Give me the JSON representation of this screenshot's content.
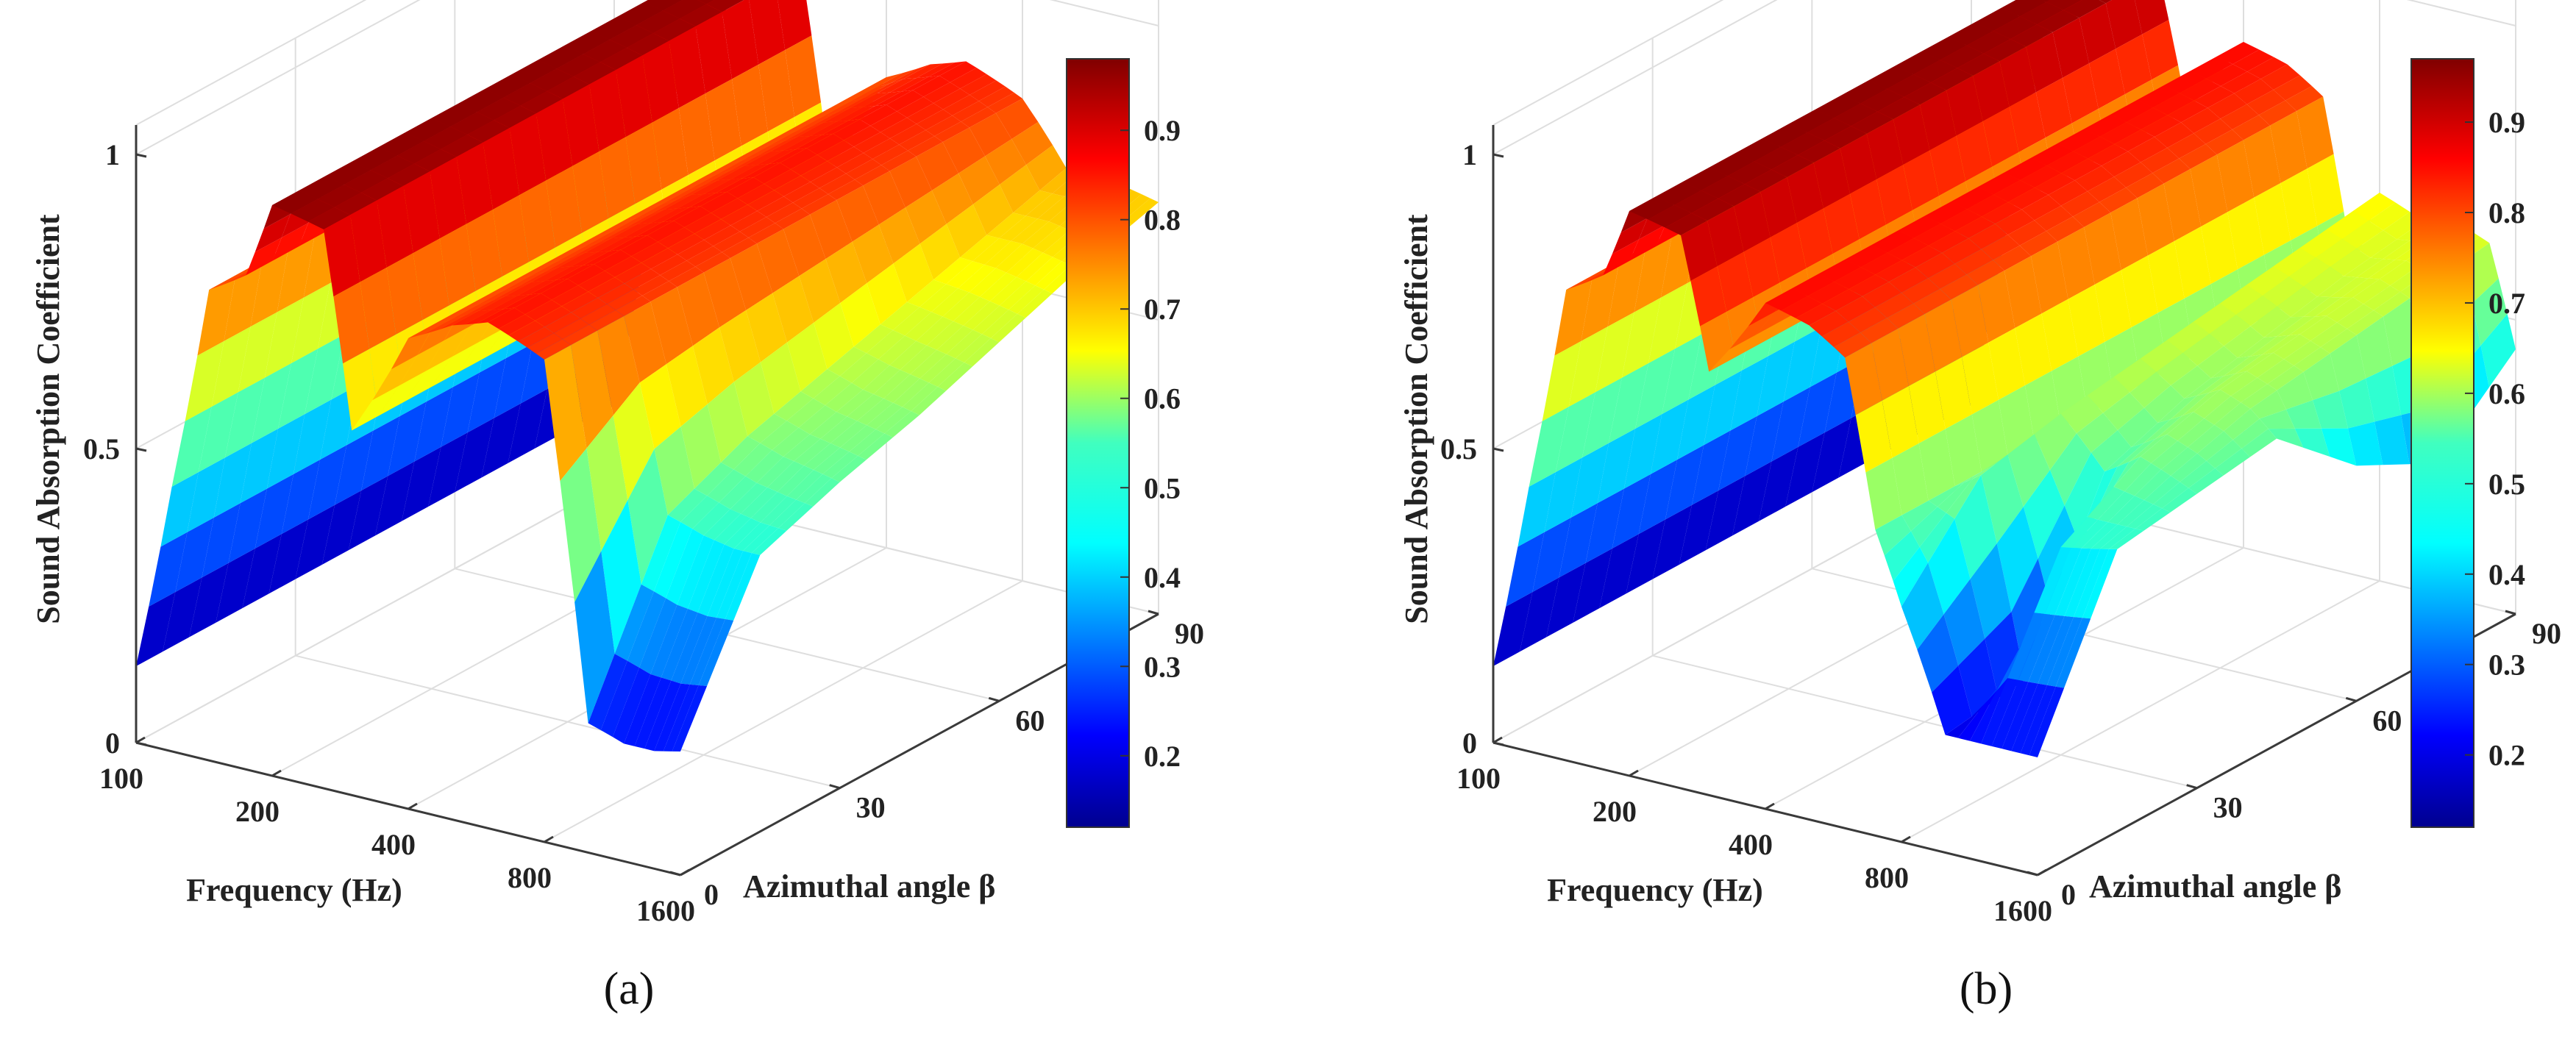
{
  "figure_description_labels": {
    "panel_a_caption": "(a)",
    "panel_b_caption": "(b)"
  },
  "chart_data": [
    {
      "type": "surface",
      "panel": "a",
      "caption": "(a)",
      "zlabel": "Sound Absorption Coefficient",
      "xlabel": "Frequency (Hz)",
      "ylabel": "Azimuthal angle β",
      "x_ticks": [
        "100",
        "200",
        "400",
        "800",
        "1600"
      ],
      "y_ticks": [
        "0",
        "30",
        "60",
        "90"
      ],
      "z_ticks": [
        "0",
        "0.5",
        "1"
      ],
      "zlim": [
        0,
        1
      ],
      "colorbar": {
        "ticks": [
          "0.2",
          "0.3",
          "0.4",
          "0.5",
          "0.6",
          "0.7",
          "0.8",
          "0.9"
        ],
        "range": [
          0.12,
          0.98
        ],
        "colormap": "jet"
      },
      "angle_deg": [
        0,
        15,
        30,
        45,
        60,
        75,
        90
      ],
      "frequency_hz": [
        100,
        120,
        145,
        175,
        200,
        260,
        300,
        400,
        500,
        600,
        700,
        800,
        1000,
        1200,
        1400,
        1600
      ],
      "absorption": [
        [
          0.13,
          0.45,
          0.8,
          0.84,
          0.97,
          0.95,
          0.62,
          0.8,
          0.84,
          0.86,
          0.84,
          0.82,
          0.22,
          0.2,
          0.2,
          0.21
        ],
        [
          0.13,
          0.45,
          0.8,
          0.84,
          0.97,
          0.95,
          0.62,
          0.8,
          0.84,
          0.86,
          0.84,
          0.82,
          0.5,
          0.48,
          0.47,
          0.47
        ],
        [
          0.13,
          0.45,
          0.8,
          0.84,
          0.97,
          0.95,
          0.62,
          0.8,
          0.84,
          0.86,
          0.84,
          0.82,
          0.56,
          0.54,
          0.53,
          0.52
        ],
        [
          0.13,
          0.45,
          0.8,
          0.84,
          0.97,
          0.95,
          0.62,
          0.8,
          0.84,
          0.86,
          0.84,
          0.82,
          0.6,
          0.58,
          0.57,
          0.56
        ],
        [
          0.13,
          0.45,
          0.8,
          0.84,
          0.97,
          0.95,
          0.62,
          0.8,
          0.84,
          0.86,
          0.84,
          0.82,
          0.64,
          0.63,
          0.62,
          0.61
        ],
        [
          0.13,
          0.45,
          0.8,
          0.84,
          0.97,
          0.95,
          0.62,
          0.8,
          0.84,
          0.86,
          0.84,
          0.82,
          0.68,
          0.68,
          0.67,
          0.66
        ],
        [
          0.13,
          0.45,
          0.8,
          0.84,
          0.97,
          0.95,
          0.62,
          0.8,
          0.84,
          0.86,
          0.84,
          0.82,
          0.72,
          0.72,
          0.71,
          0.7
        ]
      ]
    },
    {
      "type": "surface",
      "panel": "b",
      "caption": "(b)",
      "zlabel": "Sound Absorption Coefficient",
      "xlabel": "Frequency (Hz)",
      "ylabel": "Azimuthal angle β",
      "x_ticks": [
        "100",
        "200",
        "400",
        "800",
        "1600"
      ],
      "y_ticks": [
        "0",
        "30",
        "60",
        "90"
      ],
      "z_ticks": [
        "0",
        "0.5",
        "1"
      ],
      "zlim": [
        0,
        1
      ],
      "colorbar": {
        "ticks": [
          "0.2",
          "0.3",
          "0.4",
          "0.5",
          "0.6",
          "0.7",
          "0.8",
          "0.9"
        ],
        "range": [
          0.12,
          0.97
        ],
        "colormap": "jet"
      },
      "angle_deg": [
        0,
        15,
        30,
        45,
        60,
        75,
        90
      ],
      "frequency_hz": [
        100,
        120,
        145,
        175,
        200,
        260,
        300,
        400,
        500,
        600,
        700,
        800,
        1000,
        1200,
        1400,
        1600
      ],
      "absorption": [
        [
          0.13,
          0.45,
          0.8,
          0.84,
          0.96,
          0.94,
          0.72,
          0.86,
          0.84,
          0.8,
          0.52,
          0.4,
          0.2,
          0.2,
          0.2,
          0.2
        ],
        [
          0.13,
          0.45,
          0.8,
          0.84,
          0.96,
          0.94,
          0.72,
          0.86,
          0.84,
          0.8,
          0.52,
          0.55,
          0.22,
          0.46,
          0.47,
          0.48
        ],
        [
          0.13,
          0.45,
          0.8,
          0.84,
          0.96,
          0.94,
          0.72,
          0.86,
          0.84,
          0.8,
          0.52,
          0.58,
          0.5,
          0.54,
          0.52,
          0.5
        ],
        [
          0.13,
          0.45,
          0.8,
          0.84,
          0.96,
          0.94,
          0.72,
          0.86,
          0.84,
          0.8,
          0.52,
          0.6,
          0.55,
          0.58,
          0.56,
          0.52
        ],
        [
          0.13,
          0.45,
          0.8,
          0.84,
          0.96,
          0.94,
          0.72,
          0.86,
          0.84,
          0.8,
          0.52,
          0.62,
          0.58,
          0.6,
          0.58,
          0.4
        ],
        [
          0.13,
          0.45,
          0.8,
          0.84,
          0.96,
          0.94,
          0.72,
          0.86,
          0.84,
          0.8,
          0.52,
          0.64,
          0.61,
          0.62,
          0.6,
          0.33
        ],
        [
          0.13,
          0.45,
          0.8,
          0.84,
          0.96,
          0.94,
          0.72,
          0.86,
          0.84,
          0.8,
          0.52,
          0.66,
          0.63,
          0.64,
          0.62,
          0.45
        ]
      ]
    }
  ]
}
